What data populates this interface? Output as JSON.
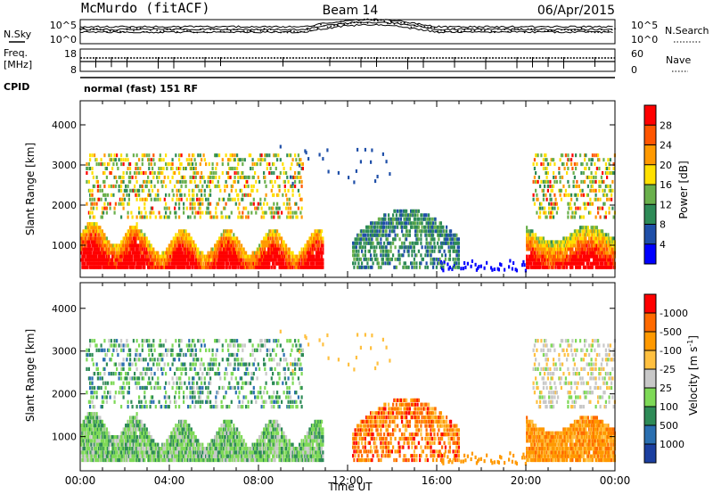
{
  "header": {
    "station": "McMurdo (fitACF)",
    "beam": "Beam 14",
    "date": "06/Apr/2015"
  },
  "noise_panel": {
    "left_label": "N.Sky",
    "right_label": "N.Search",
    "left_ticks": [
      "10^5",
      "10^0"
    ],
    "right_ticks": [
      "10^5",
      "10^0"
    ]
  },
  "freq_panel": {
    "left_label_line1": "Freq.",
    "left_label_line2": "[MHz]",
    "left_ticks": [
      "18",
      "8"
    ],
    "right_label": "Nave",
    "right_ticks": [
      "60",
      "0"
    ]
  },
  "cpid": {
    "label": "CPID",
    "mode": "normal (fast) 151 RF"
  },
  "colors": {
    "power": [
      "#0000ff",
      "#1f4fa8",
      "#2e8b57",
      "#6ab04c",
      "#ffe000",
      "#ff9900",
      "#ff5500",
      "#ff0000"
    ],
    "velocity": [
      "#1b3fa0",
      "#2a6fb0",
      "#2e8b57",
      "#7ed957",
      "#c8c8c8",
      "#ffc040",
      "#ff9900",
      "#ff6a00",
      "#ff0000"
    ]
  },
  "chart_data": [
    {
      "type": "heatmap",
      "quantity": "Power",
      "ylabel": "Slant Range [km]",
      "yticks": [
        1000,
        2000,
        3000,
        4000
      ],
      "ylim": [
        200,
        4600
      ],
      "xlim": [
        0,
        24
      ],
      "colorbar_label": "Power [dB]",
      "colorbar_ticks": [
        "4",
        "8",
        "12",
        "16",
        "20",
        "24",
        "28"
      ]
    },
    {
      "type": "heatmap",
      "quantity": "Velocity",
      "ylabel": "Slant Range [km]",
      "yticks": [
        1000,
        2000,
        3000,
        4000
      ],
      "ylim": [
        200,
        4600
      ],
      "xlim": [
        0,
        24
      ],
      "xlabel": "Time UT",
      "xticks": [
        "00:00",
        "04:00",
        "08:00",
        "12:00",
        "16:00",
        "20:00",
        "00:00"
      ],
      "colorbar_label": "Velocity [m s",
      "colorbar_label_sup": "-1",
      "colorbar_label_end": "]",
      "colorbar_ticks": [
        "1000",
        "500",
        "100",
        "25",
        "-25",
        "-100",
        "-500",
        "-1000"
      ]
    }
  ]
}
